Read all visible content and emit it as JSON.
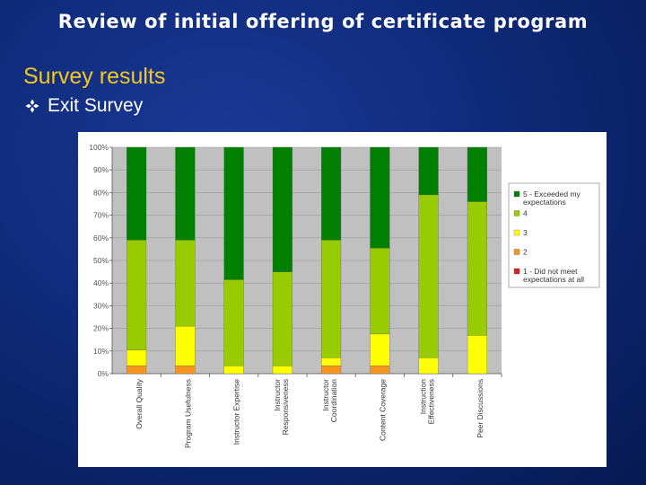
{
  "slide": {
    "title": "Review of initial offering of certificate program",
    "heading": "Survey results",
    "bullet": "Exit Survey",
    "bullet_icon": "diamond-clover-bullet-icon"
  },
  "colors": {
    "background": "#0f2a7a",
    "heading": "#f2c81e",
    "plot_area": "#c0c0c0",
    "series": [
      "#e41a1c",
      "#f7941d",
      "#ffff00",
      "#99cc00",
      "#008000"
    ]
  },
  "chart_data": {
    "type": "bar",
    "stacked": true,
    "stacked_percent": true,
    "grid": true,
    "legend_position": "right",
    "ylim": [
      0,
      100
    ],
    "yticks": [
      "0%",
      "10%",
      "20%",
      "30%",
      "40%",
      "50%",
      "60%",
      "70%",
      "80%",
      "90%",
      "100%"
    ],
    "categories": [
      [
        "Overall Quality"
      ],
      [
        "Program Usefulness"
      ],
      [
        "Instructor Expertise"
      ],
      [
        "Instructor",
        "Responsiveness"
      ],
      [
        "Instructor",
        "Coordination"
      ],
      [
        "Content Coverage"
      ],
      [
        "Instruction",
        "Effectiveness"
      ],
      [
        "Peer Discussions"
      ]
    ],
    "series": [
      {
        "name": "1 - Did not meet expectations at all",
        "legend_lines": [
          "1 - Did not meet",
          "expectations at all"
        ],
        "color": "#e41a1c",
        "values": [
          0,
          0,
          0,
          0,
          0,
          0,
          0,
          0
        ]
      },
      {
        "name": "2",
        "legend_lines": [
          "2"
        ],
        "color": "#f7941d",
        "values": [
          3.5,
          3.5,
          0,
          0,
          3.5,
          3.5,
          0,
          0
        ]
      },
      {
        "name": "3",
        "legend_lines": [
          "3"
        ],
        "color": "#ffff00",
        "values": [
          7,
          17.5,
          3.5,
          3.5,
          3.5,
          14,
          7,
          17
        ]
      },
      {
        "name": "4",
        "legend_lines": [
          "4"
        ],
        "color": "#99cc00",
        "values": [
          48.5,
          38,
          38,
          41.5,
          52,
          38,
          72,
          59
        ]
      },
      {
        "name": "5 - Exceeded my expectations",
        "legend_lines": [
          "5 - Exceeded my",
          "expectations"
        ],
        "color": "#008000",
        "values": [
          41,
          41,
          58.5,
          55,
          41,
          44.5,
          21,
          24
        ]
      }
    ]
  }
}
